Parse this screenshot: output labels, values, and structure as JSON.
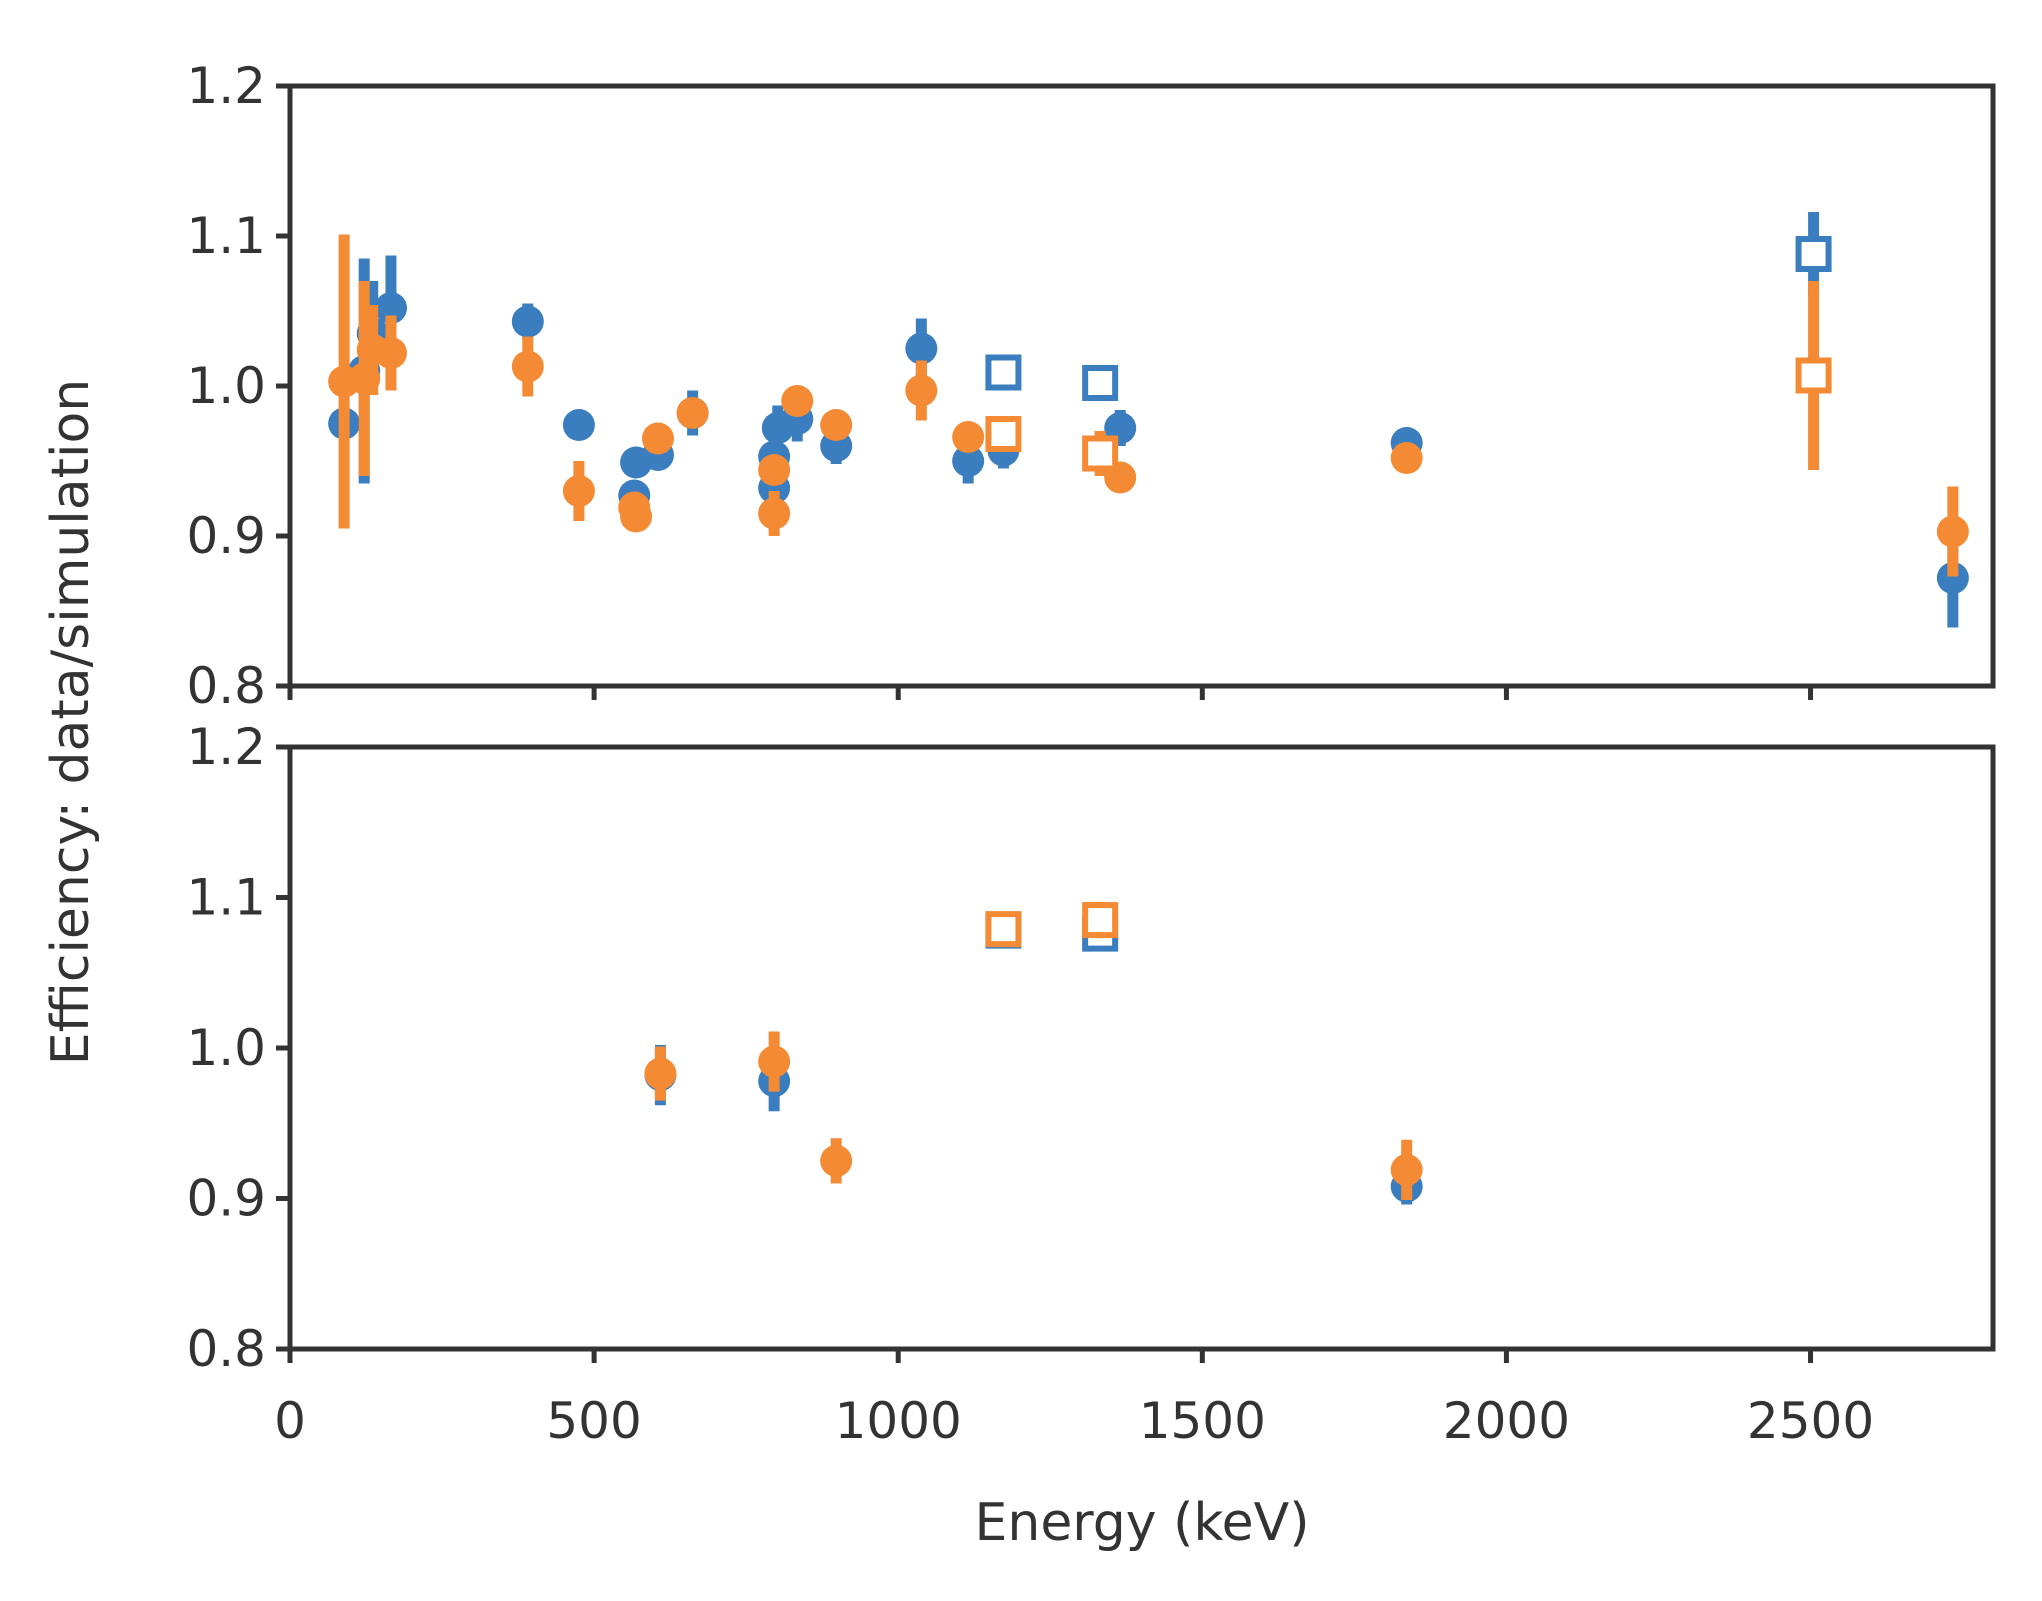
{
  "chart_data": {
    "type": "scatter",
    "xlabel": "Energy (keV)",
    "ylabel": "Efficiency: data/simulation",
    "xlim": [
      0,
      2800
    ],
    "xticks": [
      0,
      500,
      1000,
      1500,
      2000,
      2500
    ],
    "xtick_labels": [
      "0",
      "500",
      "1000",
      "1500",
      "2000",
      "2500"
    ],
    "colors": {
      "blue": "#3a7ebf",
      "orange": "#f58a35",
      "axes": "#333333"
    },
    "panels": [
      {
        "name": "top",
        "ylim": [
          0.8,
          1.2
        ],
        "yticks": [
          0.8,
          0.9,
          1.0,
          1.1,
          1.2
        ],
        "ytick_labels": [
          "0.8",
          "0.9",
          "1.0",
          "1.1",
          "1.2"
        ],
        "series": [
          {
            "name": "blue-circles",
            "color": "blue",
            "marker": "circle",
            "points": [
              {
                "x": 89,
                "y": 0.975,
                "err": 0.0
              },
              {
                "x": 122,
                "y": 1.01,
                "err": 0.075
              },
              {
                "x": 136,
                "y": 1.035,
                "err": 0.035
              },
              {
                "x": 166,
                "y": 1.052,
                "err": 0.035
              },
              {
                "x": 391,
                "y": 1.043,
                "err": 0.012
              },
              {
                "x": 475,
                "y": 0.974,
                "err": 0.01
              },
              {
                "x": 566,
                "y": 0.927,
                "err": 0.01
              },
              {
                "x": 569,
                "y": 0.949,
                "err": 0.01
              },
              {
                "x": 605,
                "y": 0.954,
                "err": 0.01
              },
              {
                "x": 662,
                "y": 0.982,
                "err": 0.015
              },
              {
                "x": 796,
                "y": 0.932,
                "err": 0.01
              },
              {
                "x": 796,
                "y": 0.953,
                "err": 0.015
              },
              {
                "x": 802,
                "y": 0.972,
                "err": 0.015
              },
              {
                "x": 834,
                "y": 0.978,
                "err": 0.015
              },
              {
                "x": 898,
                "y": 0.96,
                "err": 0.012
              },
              {
                "x": 1038,
                "y": 1.025,
                "err": 0.02
              },
              {
                "x": 1115,
                "y": 0.95,
                "err": 0.015
              },
              {
                "x": 1173,
                "y": 0.957,
                "err": 0.012
              },
              {
                "x": 1365,
                "y": 0.972,
                "err": 0.012
              },
              {
                "x": 1836,
                "y": 0.962,
                "err": 0.01
              },
              {
                "x": 2734,
                "y": 0.872,
                "err": 0.033
              }
            ]
          },
          {
            "name": "orange-circles",
            "color": "orange",
            "marker": "circle",
            "points": [
              {
                "x": 89,
                "y": 1.003,
                "err": 0.098
              },
              {
                "x": 122,
                "y": 1.005,
                "err": 0.065
              },
              {
                "x": 136,
                "y": 1.024,
                "err": 0.03
              },
              {
                "x": 166,
                "y": 1.022,
                "err": 0.025
              },
              {
                "x": 391,
                "y": 1.013,
                "err": 0.02
              },
              {
                "x": 475,
                "y": 0.93,
                "err": 0.02
              },
              {
                "x": 566,
                "y": 0.919,
                "err": 0.01
              },
              {
                "x": 569,
                "y": 0.913,
                "err": 0.01
              },
              {
                "x": 605,
                "y": 0.965,
                "err": 0.01
              },
              {
                "x": 662,
                "y": 0.982,
                "err": 0.01
              },
              {
                "x": 796,
                "y": 0.944,
                "err": 0.01
              },
              {
                "x": 796,
                "y": 0.915,
                "err": 0.015
              },
              {
                "x": 834,
                "y": 0.99,
                "err": 0.01
              },
              {
                "x": 898,
                "y": 0.974,
                "err": 0.01
              },
              {
                "x": 1038,
                "y": 0.997,
                "err": 0.02
              },
              {
                "x": 1115,
                "y": 0.966,
                "err": 0.01
              },
              {
                "x": 1365,
                "y": 0.939,
                "err": 0.01
              },
              {
                "x": 1836,
                "y": 0.952,
                "err": 0.01
              },
              {
                "x": 2734,
                "y": 0.903,
                "err": 0.03
              }
            ]
          },
          {
            "name": "blue-squares",
            "color": "blue",
            "marker": "square",
            "points": [
              {
                "x": 1173,
                "y": 1.009,
                "err": 0.0
              },
              {
                "x": 1332,
                "y": 1.002,
                "err": 0.0
              },
              {
                "x": 2505,
                "y": 1.088,
                "err": 0.028
              }
            ]
          },
          {
            "name": "orange-squares",
            "color": "orange",
            "marker": "square",
            "points": [
              {
                "x": 1173,
                "y": 0.968,
                "err": 0.012
              },
              {
                "x": 1332,
                "y": 0.955,
                "err": 0.015
              },
              {
                "x": 2505,
                "y": 1.007,
                "err": 0.063
              }
            ]
          }
        ]
      },
      {
        "name": "bottom",
        "ylim": [
          0.8,
          1.2
        ],
        "yticks": [
          0.8,
          0.9,
          1.0,
          1.1,
          1.2
        ],
        "ytick_labels": [
          "0.8",
          "0.9",
          "1.0",
          "1.1",
          "1.2"
        ],
        "series": [
          {
            "name": "blue-circles",
            "color": "blue",
            "marker": "circle",
            "points": [
              {
                "x": 609,
                "y": 0.982,
                "err": 0.02
              },
              {
                "x": 796,
                "y": 0.978,
                "err": 0.02
              },
              {
                "x": 1836,
                "y": 0.908,
                "err": 0.012
              }
            ]
          },
          {
            "name": "orange-circles",
            "color": "orange",
            "marker": "circle",
            "points": [
              {
                "x": 609,
                "y": 0.983,
                "err": 0.018
              },
              {
                "x": 796,
                "y": 0.991,
                "err": 0.02
              },
              {
                "x": 898,
                "y": 0.925,
                "err": 0.015
              },
              {
                "x": 1836,
                "y": 0.919,
                "err": 0.02
              }
            ]
          },
          {
            "name": "blue-squares",
            "color": "blue",
            "marker": "square",
            "points": [
              {
                "x": 1173,
                "y": 1.078,
                "err": 0.01
              },
              {
                "x": 1332,
                "y": 1.076,
                "err": 0.01
              }
            ]
          },
          {
            "name": "orange-squares",
            "color": "orange",
            "marker": "square",
            "points": [
              {
                "x": 1173,
                "y": 1.079,
                "err": 0.01
              },
              {
                "x": 1332,
                "y": 1.085,
                "err": 0.012
              }
            ]
          }
        ]
      }
    ]
  }
}
